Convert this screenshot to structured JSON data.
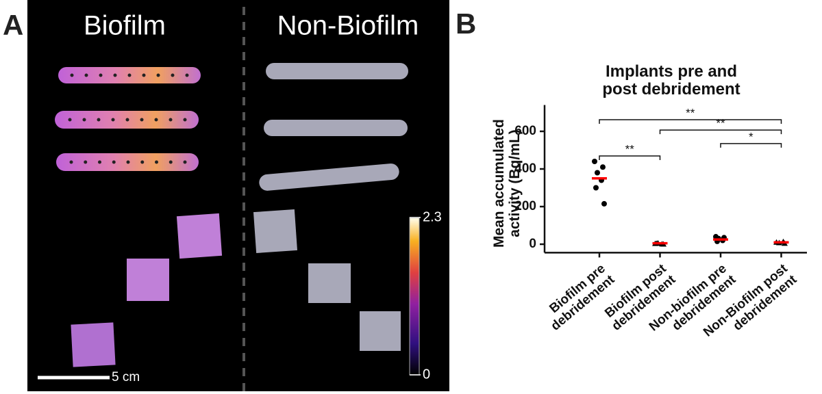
{
  "panel_labels": [
    "A",
    "B"
  ],
  "image_panel": {
    "left_label": "Biofilm",
    "right_label": "Non-Biofilm",
    "scale_bar": "5 cm",
    "colorbar": {
      "ticks": [
        {
          "value": 2.3,
          "label": "2.3"
        },
        0
      ],
      "lim": [
        0,
        2.3
      ]
    }
  },
  "chart_data": {
    "type": "dot",
    "title": "Implants pre and\npost debridement",
    "y_label": "Mean accumulated\nactivity (Bq/mL)",
    "categories": [
      "Biofilm pre\ndebridement",
      "Biofilm post\ndebridement",
      "Non-biofilm pre\ndebridement",
      "Non-Biofilm post\ndebridement"
    ],
    "points": [
      [
        440,
        410,
        380,
        340,
        300,
        215
      ],
      [
        5,
        2,
        8,
        3,
        6
      ],
      [
        40,
        35,
        30,
        20,
        15
      ],
      [
        12,
        6,
        9,
        15
      ]
    ],
    "means": [
      350,
      5,
      25,
      10
    ],
    "point_color": "#000000",
    "mean_color": "#ff0000",
    "ylim": [
      -45,
      740
    ],
    "yticks": [
      0,
      200,
      400,
      600
    ],
    "annotations": [
      {
        "from": 0,
        "to": 3,
        "value": 662,
        "label": "**"
      },
      {
        "from": 1,
        "to": 3,
        "value": 607,
        "label": "**"
      },
      {
        "from": 0,
        "to": 1,
        "value": 469,
        "label": "**"
      },
      {
        "from": 2,
        "to": 3,
        "value": 535,
        "label": "*"
      }
    ]
  }
}
